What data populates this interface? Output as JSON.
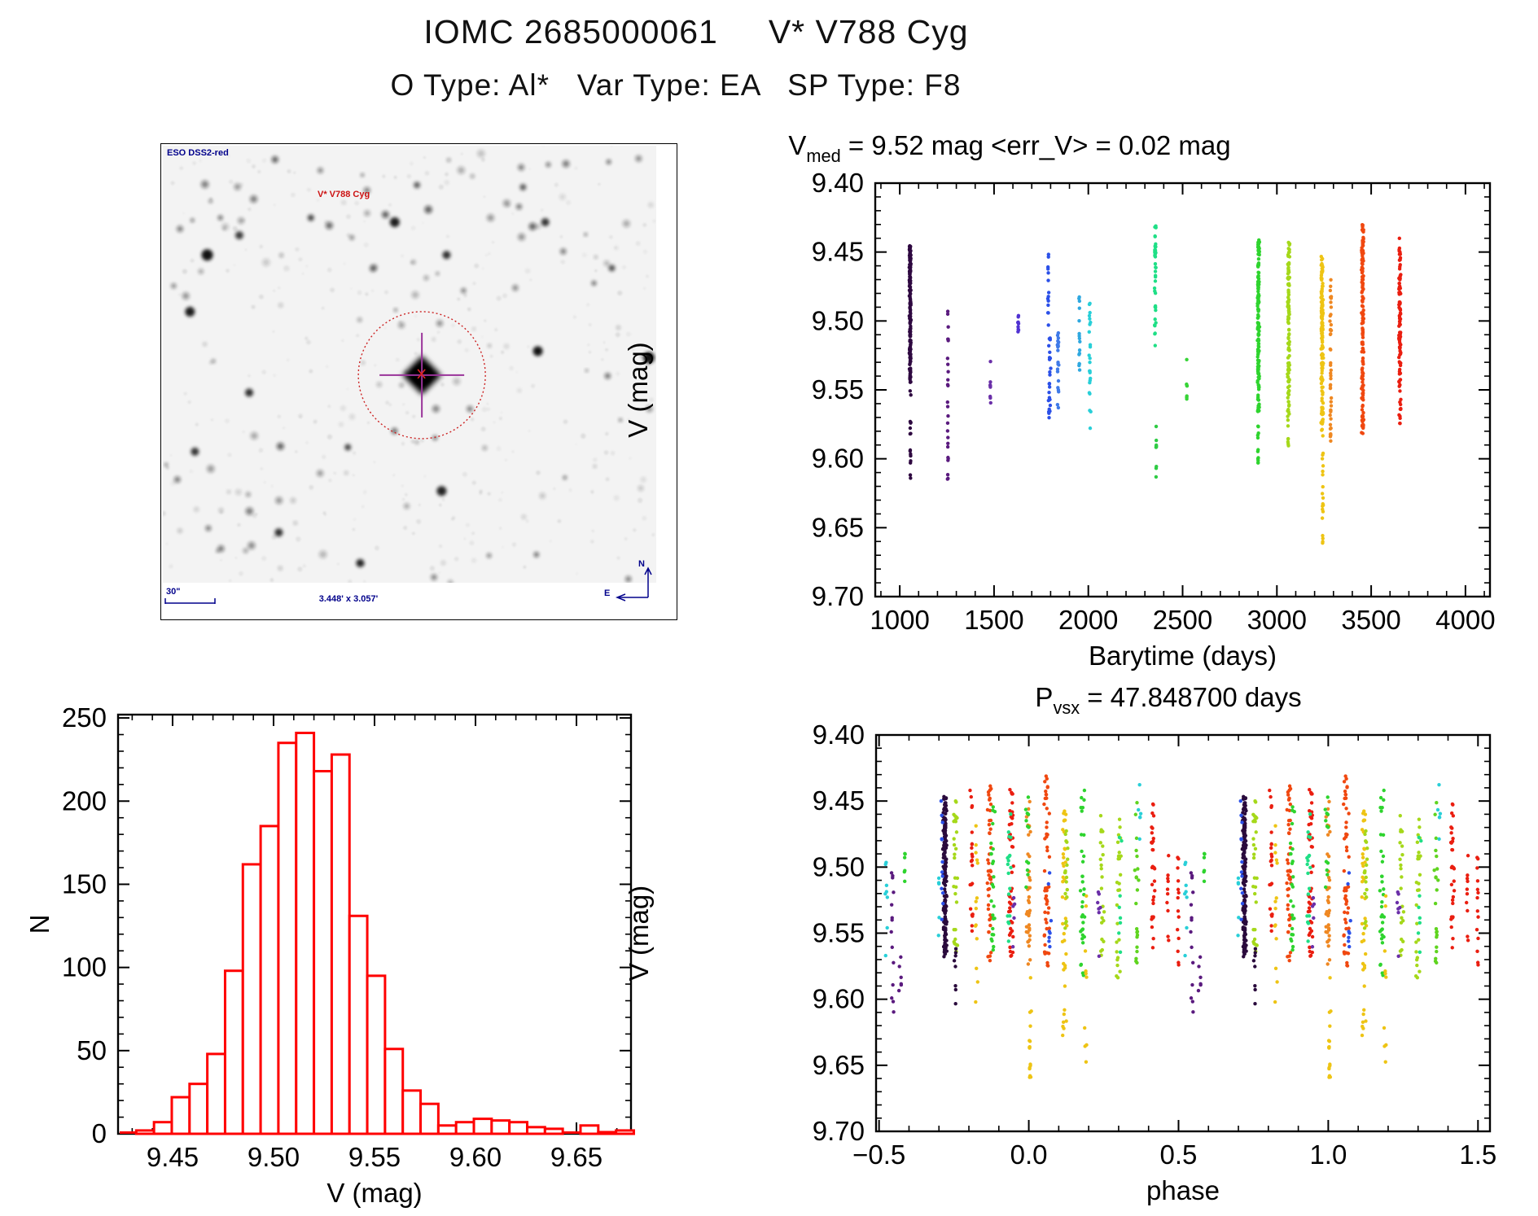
{
  "page": {
    "title": "IOMC 2685000061     V* V788 Cyg",
    "subtitle": "O Type: Al*   Var Type: EA   SP Type: F8"
  },
  "starfield": {
    "survey_label": "ESO DSS2-red",
    "target_label": "V* V788 Cyg",
    "scale_label": "30\"",
    "fov_label": "3.448' x 3.057'",
    "compass_north": "N",
    "compass_east": "E",
    "label_color": "#00008b",
    "target_color": "#cc1111",
    "marker_circle_color": "#cc2222",
    "crosshair_color": "#993399",
    "big_stars": [
      {
        "fx": 0.09,
        "fy": 0.25,
        "r": 7,
        "o": 0.92
      },
      {
        "fx": 0.155,
        "fy": 0.205,
        "r": 5,
        "o": 0.75
      },
      {
        "fx": 0.3,
        "fy": 0.165,
        "r": 4,
        "o": 0.7
      },
      {
        "fx": 0.47,
        "fy": 0.175,
        "r": 6,
        "o": 0.88
      },
      {
        "fx": 0.575,
        "fy": 0.25,
        "r": 5,
        "o": 0.8
      },
      {
        "fx": 0.055,
        "fy": 0.38,
        "r": 6,
        "o": 0.88
      },
      {
        "fx": 0.76,
        "fy": 0.47,
        "r": 6,
        "o": 0.92
      },
      {
        "fx": 0.565,
        "fy": 0.79,
        "r": 6,
        "o": 0.85
      },
      {
        "fx": 0.175,
        "fy": 0.565,
        "r": 5,
        "o": 0.8
      },
      {
        "fx": 0.375,
        "fy": 0.69,
        "r": 4,
        "o": 0.7
      },
      {
        "fx": 0.065,
        "fy": 0.7,
        "r": 5,
        "o": 0.78
      },
      {
        "fx": 0.235,
        "fy": 0.885,
        "r": 5,
        "o": 0.8
      },
      {
        "fx": 0.4,
        "fy": 0.955,
        "r": 5,
        "o": 0.85
      },
      {
        "fx": 0.775,
        "fy": 0.175,
        "r": 5,
        "o": 0.78
      },
      {
        "fx": 0.73,
        "fy": 0.095,
        "r": 4,
        "o": 0.6
      },
      {
        "fx": 0.985,
        "fy": 0.485,
        "r": 7,
        "o": 0.92
      },
      {
        "fx": 0.91,
        "fy": 0.28,
        "r": 4,
        "o": 0.65
      },
      {
        "fx": 0.515,
        "fy": 0.09,
        "r": 4,
        "o": 0.6
      }
    ],
    "center_star": {
      "fx": 0.525,
      "fy": 0.525,
      "circle_r": 78
    }
  },
  "chart_data": [
    {
      "id": "time_plot",
      "type": "scatter",
      "title": {
        "pre": "V",
        "sub": "med",
        "post": " = 9.52 mag <err_V> = 0.02 mag"
      },
      "xlabel": "Barytime (days)",
      "ylabel": "V (mag)",
      "xlim": [
        870,
        4130
      ],
      "ylim": [
        9.4,
        9.7
      ],
      "y_inverted": true,
      "xticks": [
        1000,
        1500,
        2000,
        2500,
        3000,
        3500,
        4000
      ],
      "xminor_step": 100,
      "yticks": [
        9.4,
        9.45,
        9.5,
        9.55,
        9.6,
        9.65,
        9.7
      ],
      "yminor_step": 0.01,
      "grid": false,
      "clusters": [
        {
          "x": 1055,
          "c": "#2e0840",
          "y0": 9.445,
          "y1": 9.545,
          "n": 170,
          "s": 5
        },
        {
          "x": 1057,
          "c": "#2e0840",
          "y0": 9.545,
          "y1": 9.615,
          "n": 16,
          "s": 3
        },
        {
          "x": 1255,
          "c": "#5a1a7e",
          "y0": 9.488,
          "y1": 9.616,
          "n": 26,
          "s": 3
        },
        {
          "x": 1480,
          "c": "#6a2fa8",
          "y0": 9.528,
          "y1": 9.56,
          "n": 8,
          "s": 3
        },
        {
          "x": 1628,
          "c": "#5032d2",
          "y0": 9.492,
          "y1": 9.508,
          "n": 9,
          "s": 4
        },
        {
          "x": 1788,
          "c": "#2b50e8",
          "y0": 9.448,
          "y1": 9.51,
          "n": 14,
          "s": 4
        },
        {
          "x": 1795,
          "c": "#2b50e8",
          "y0": 9.51,
          "y1": 9.575,
          "n": 26,
          "s": 8
        },
        {
          "x": 1840,
          "c": "#3f7ae8",
          "y0": 9.508,
          "y1": 9.568,
          "n": 22,
          "s": 5
        },
        {
          "x": 1952,
          "c": "#2fa8e0",
          "y0": 9.476,
          "y1": 9.545,
          "n": 16,
          "s": 4
        },
        {
          "x": 2008,
          "c": "#28cfd8",
          "y0": 9.487,
          "y1": 9.578,
          "n": 24,
          "s": 5
        },
        {
          "x": 2355,
          "c": "#1fdf86",
          "y0": 9.43,
          "y1": 9.52,
          "n": 42,
          "s": 4
        },
        {
          "x": 2360,
          "c": "#2ecc44",
          "y0": 9.575,
          "y1": 9.617,
          "n": 9,
          "s": 3
        },
        {
          "x": 2522,
          "c": "#37d437",
          "y0": 9.527,
          "y1": 9.558,
          "n": 7,
          "s": 3
        },
        {
          "x": 2902,
          "c": "#2ed42e",
          "y0": 9.44,
          "y1": 9.568,
          "n": 150,
          "s": 6
        },
        {
          "x": 2900,
          "c": "#2ed42e",
          "y0": 9.568,
          "y1": 9.603,
          "n": 12,
          "s": 3
        },
        {
          "x": 3062,
          "c": "#a5d81a",
          "y0": 9.443,
          "y1": 9.568,
          "n": 110,
          "s": 7
        },
        {
          "x": 3060,
          "c": "#a5d81a",
          "y0": 9.568,
          "y1": 9.592,
          "n": 8,
          "s": 3
        },
        {
          "x": 3240,
          "c": "#eec414",
          "y0": 9.452,
          "y1": 9.58,
          "n": 150,
          "s": 7
        },
        {
          "x": 3243,
          "c": "#eec414",
          "y0": 9.58,
          "y1": 9.672,
          "n": 20,
          "s": 3
        },
        {
          "x": 3285,
          "c": "#ef8822",
          "y0": 9.468,
          "y1": 9.59,
          "n": 45,
          "s": 4
        },
        {
          "x": 3455,
          "c": "#f04810",
          "y0": 9.43,
          "y1": 9.585,
          "n": 160,
          "s": 7
        },
        {
          "x": 3652,
          "c": "#ea1e10",
          "y0": 9.44,
          "y1": 9.575,
          "n": 100,
          "s": 6
        }
      ]
    },
    {
      "id": "histogram",
      "type": "bar",
      "xlabel": "V (mag)",
      "ylabel": "N",
      "xlim": [
        9.423,
        9.677
      ],
      "ylim": [
        0,
        252
      ],
      "xticks": [
        9.45,
        9.5,
        9.55,
        9.6,
        9.65
      ],
      "xminor_step": 0.01,
      "yticks": [
        0,
        50,
        100,
        150,
        200,
        250
      ],
      "yminor_step": 10,
      "bar_color": "#ff0000",
      "bin_start": 9.432,
      "bin_width": 0.0088,
      "values": [
        2,
        7,
        22,
        30,
        48,
        98,
        162,
        185,
        235,
        241,
        218,
        228,
        131,
        95,
        51,
        26,
        18,
        5,
        7,
        9,
        8,
        7,
        4,
        3,
        0,
        5,
        1,
        2
      ]
    },
    {
      "id": "phase_plot",
      "type": "scatter",
      "title": {
        "pre": "P",
        "sub": "vsx",
        "post": " = 47.848700 days"
      },
      "xlabel": "phase",
      "ylabel": "V (mag)",
      "xlim": [
        -0.51,
        1.54
      ],
      "ylim": [
        9.4,
        9.7
      ],
      "y_inverted": true,
      "xticks": [
        -0.5,
        0.0,
        0.5,
        1.0,
        1.5
      ],
      "xminor_step": 0.1,
      "yticks": [
        9.4,
        9.45,
        9.5,
        9.55,
        9.6,
        9.65,
        9.7
      ],
      "yminor_step": 0.01,
      "grid": false,
      "note": "each cluster is plotted at phase p and p+1",
      "clusters": [
        {
          "p": -0.475,
          "c": "#28cfd8",
          "y0": 9.49,
          "y1": 9.575,
          "n": 8,
          "s": 0.006
        },
        {
          "p": -0.455,
          "c": "#5a1a7e",
          "y0": 9.5,
          "y1": 9.618,
          "n": 14,
          "s": 0.006
        },
        {
          "p": -0.43,
          "c": "#5a1a7e",
          "y0": 9.545,
          "y1": 9.6,
          "n": 6,
          "s": 0.005
        },
        {
          "p": -0.415,
          "c": "#2ed42e",
          "y0": 9.487,
          "y1": 9.52,
          "n": 6,
          "s": 0.005
        },
        {
          "p": -0.28,
          "c": "#2a0a3c",
          "y0": 9.445,
          "y1": 9.568,
          "n": 170,
          "s": 0.008
        },
        {
          "p": -0.29,
          "c": "#2b50e8",
          "y0": 9.449,
          "y1": 9.545,
          "n": 12,
          "s": 0.005
        },
        {
          "p": -0.3,
          "c": "#28cfd8",
          "y0": 9.5,
          "y1": 9.56,
          "n": 5,
          "s": 0.004
        },
        {
          "p": -0.245,
          "c": "#a5d81a",
          "y0": 9.447,
          "y1": 9.565,
          "n": 30,
          "s": 0.008
        },
        {
          "p": -0.245,
          "c": "#2a0a3c",
          "y0": 9.54,
          "y1": 9.605,
          "n": 8,
          "s": 0.004
        },
        {
          "p": -0.19,
          "c": "#ea1e10",
          "y0": 9.44,
          "y1": 9.56,
          "n": 22,
          "s": 0.007
        },
        {
          "p": -0.175,
          "c": "#eec414",
          "y0": 9.468,
          "y1": 9.62,
          "n": 14,
          "s": 0.006
        },
        {
          "p": -0.13,
          "c": "#f04810",
          "y0": 9.432,
          "y1": 9.572,
          "n": 45,
          "s": 0.009
        },
        {
          "p": -0.12,
          "c": "#2ed42e",
          "y0": 9.44,
          "y1": 9.565,
          "n": 25,
          "s": 0.009
        },
        {
          "p": -0.06,
          "c": "#ea1e10",
          "y0": 9.44,
          "y1": 9.572,
          "n": 45,
          "s": 0.009
        },
        {
          "p": -0.065,
          "c": "#1fdf86",
          "y0": 9.45,
          "y1": 9.558,
          "n": 18,
          "s": 0.008
        },
        {
          "p": -0.05,
          "c": "#6a2fa8",
          "y0": 9.52,
          "y1": 9.562,
          "n": 5,
          "s": 0.004
        },
        {
          "p": 0.0,
          "c": "#ef8822",
          "y0": 9.448,
          "y1": 9.578,
          "n": 40,
          "s": 0.009
        },
        {
          "p": 0.005,
          "c": "#eec414",
          "y0": 9.575,
          "y1": 9.67,
          "n": 16,
          "s": 0.004
        },
        {
          "p": -0.005,
          "c": "#2ed42e",
          "y0": 9.44,
          "y1": 9.52,
          "n": 12,
          "s": 0.006
        },
        {
          "p": 0.06,
          "c": "#f04810",
          "y0": 9.43,
          "y1": 9.575,
          "n": 50,
          "s": 0.01
        },
        {
          "p": 0.07,
          "c": "#2b50e8",
          "y0": 9.5,
          "y1": 9.565,
          "n": 8,
          "s": 0.005
        },
        {
          "p": 0.12,
          "c": "#eec414",
          "y0": 9.455,
          "y1": 9.635,
          "n": 40,
          "s": 0.009
        },
        {
          "p": 0.125,
          "c": "#a5d81a",
          "y0": 9.468,
          "y1": 9.56,
          "n": 18,
          "s": 0.008
        },
        {
          "p": 0.18,
          "c": "#2ed42e",
          "y0": 9.435,
          "y1": 9.585,
          "n": 35,
          "s": 0.01
        },
        {
          "p": 0.19,
          "c": "#eec414",
          "y0": 9.5,
          "y1": 9.648,
          "n": 10,
          "s": 0.005
        },
        {
          "p": 0.245,
          "c": "#a5d81a",
          "y0": 9.458,
          "y1": 9.572,
          "n": 22,
          "s": 0.009
        },
        {
          "p": 0.235,
          "c": "#6a2fa8",
          "y0": 9.5,
          "y1": 9.57,
          "n": 7,
          "s": 0.005
        },
        {
          "p": 0.3,
          "c": "#a5d81a",
          "y0": 9.455,
          "y1": 9.585,
          "n": 26,
          "s": 0.009
        },
        {
          "p": 0.305,
          "c": "#1fdf86",
          "y0": 9.468,
          "y1": 9.578,
          "n": 8,
          "s": 0.006
        },
        {
          "p": 0.36,
          "c": "#5fd41f",
          "y0": 9.45,
          "y1": 9.575,
          "n": 22,
          "s": 0.009
        },
        {
          "p": 0.37,
          "c": "#28cfd8",
          "y0": 9.432,
          "y1": 9.51,
          "n": 6,
          "s": 0.005
        },
        {
          "p": 0.415,
          "c": "#ea1e10",
          "y0": 9.443,
          "y1": 9.565,
          "n": 30,
          "s": 0.007
        },
        {
          "p": 0.465,
          "c": "#ea1e10",
          "y0": 9.49,
          "y1": 9.558,
          "n": 10,
          "s": 0.005
        },
        {
          "p": 0.498,
          "c": "#ea1e10",
          "y0": 9.49,
          "y1": 9.575,
          "n": 14,
          "s": 0.004
        }
      ]
    }
  ]
}
